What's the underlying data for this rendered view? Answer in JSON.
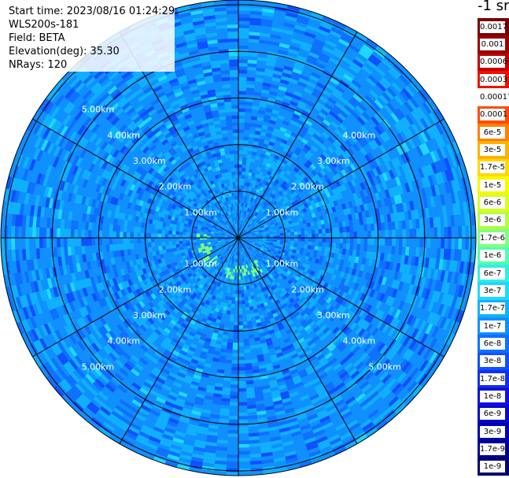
{
  "info": {
    "start_time": "Start time: 2023/08/16 01:24:29",
    "instrument": "WLS200s-181",
    "field": "Field: BETA",
    "elevation": "Elevation(deg): 35.30",
    "nrays": "NRays: 120"
  },
  "colorbar_unit": "-1 sr",
  "chart_data": {
    "type": "heatmap",
    "title": "",
    "projection": "polar PPI",
    "nrays": 120,
    "range_ring_labels": [
      "1.00km",
      "2.00km",
      "3.00km",
      "4.00km",
      "5.00km"
    ],
    "range_rings_km": [
      1,
      2,
      3,
      4,
      5
    ],
    "max_range_km": 5.1,
    "spokes_deg": [
      0,
      30,
      60,
      90,
      120,
      150,
      180,
      210,
      240,
      270,
      300,
      330
    ],
    "colorbar": {
      "scale": "log",
      "labels": [
        "0.0017",
        "0.001",
        "0.0006",
        "0.0003",
        "0.00017",
        "0.0001",
        "6e-5",
        "3e-5",
        "1.7e-5",
        "1e-5",
        "6e-6",
        "3e-6",
        "1.7e-6",
        "1e-6",
        "6e-7",
        "3e-7",
        "1.7e-7",
        "1e-7",
        "6e-8",
        "3e-8",
        "1.7e-8",
        "1e-8",
        "6e-9",
        "3e-9",
        "1.7e-9",
        "1e-9"
      ],
      "colors": [
        "#7a0000",
        "#980000",
        "#c00000",
        "#f01000",
        "#ffffff",
        "#ff4a00",
        "#ff8000",
        "#ffb000",
        "#ffd800",
        "#f8f800",
        "#d8ff20",
        "#b0ff40",
        "#80ff80",
        "#50ffb0",
        "#30f0e0",
        "#20d8ff",
        "#10b0ff",
        "#1090ff",
        "#1070ff",
        "#1050ff",
        "#1030f0",
        "#1010e0",
        "#0808c8",
        "#0000b0",
        "#000090",
        "#000070"
      ]
    },
    "field_description": {
      "background_level": "1e-7",
      "near_range_feature_level": "1.7e-6",
      "near_range_feature_range_km": [
        0.6,
        0.9
      ]
    }
  }
}
